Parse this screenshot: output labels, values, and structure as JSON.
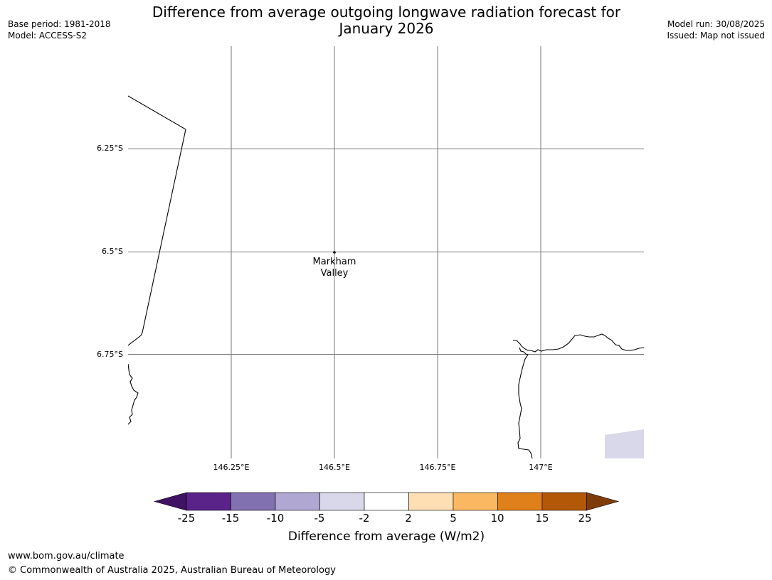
{
  "header": {
    "title_line1": "Difference from average outgoing longwave radiation forecast for",
    "title_line2": "January 2026",
    "base_period": "Base period: 1981-2018",
    "model": "Model: ACCESS-S2",
    "model_run": "Model run: 30/08/2025",
    "issued": "Issued: Map not issued"
  },
  "map": {
    "lat_labels": [
      "6.25°S",
      "6.5°S",
      "6.75°S"
    ],
    "lon_labels": [
      "146.25°E",
      "146.5°E",
      "146.75°E",
      "147°E"
    ],
    "place": {
      "name_line1": "Markham",
      "name_line2": "Valley",
      "lon": 146.5,
      "lat": -6.5
    },
    "extent": {
      "lon_min": 146.0,
      "lon_max": 147.25,
      "lat_max": -6.0,
      "lat_min": -7.0
    }
  },
  "colorbar": {
    "title": "Difference from average (W/m2)",
    "tick_labels": [
      "-25",
      "-15",
      "-10",
      "-5",
      "-2",
      "2",
      "5",
      "10",
      "15",
      "25"
    ],
    "colors": [
      "#3f1263",
      "#59238a",
      "#8271b0",
      "#b0a8d2",
      "#d9d8ea",
      "#ffffff",
      "#fddfb3",
      "#fbb862",
      "#e0801a",
      "#b35806",
      "#7f3b08"
    ]
  },
  "footer": {
    "url": "www.bom.gov.au/climate",
    "copyright": "© Commonwealth of Australia 2025, Australian Bureau of Meteorology"
  }
}
